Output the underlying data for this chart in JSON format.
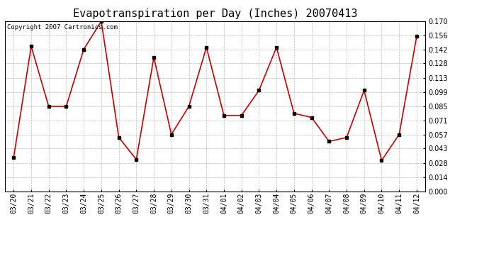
{
  "title": "Evapotranspiration per Day (Inches) 20070413",
  "copyright_text": "Copyright 2007 Cartronics.com",
  "dates": [
    "03/20",
    "03/21",
    "03/22",
    "03/23",
    "03/24",
    "03/25",
    "03/26",
    "03/27",
    "03/28",
    "03/29",
    "03/30",
    "03/31",
    "04/01",
    "04/02",
    "04/03",
    "04/04",
    "04/05",
    "04/06",
    "04/07",
    "04/08",
    "04/09",
    "04/10",
    "04/11",
    "04/12"
  ],
  "values": [
    0.034,
    0.145,
    0.085,
    0.085,
    0.142,
    0.17,
    0.054,
    0.032,
    0.134,
    0.057,
    0.085,
    0.144,
    0.076,
    0.076,
    0.101,
    0.144,
    0.078,
    0.074,
    0.05,
    0.054,
    0.101,
    0.031,
    0.057,
    0.155
  ],
  "line_color": "#cc0000",
  "marker_color": "#cc0000",
  "background_color": "#ffffff",
  "grid_color": "#bbbbbb",
  "ylim": [
    0.0,
    0.17
  ],
  "yticks": [
    0.0,
    0.014,
    0.028,
    0.043,
    0.057,
    0.071,
    0.085,
    0.099,
    0.113,
    0.128,
    0.142,
    0.156,
    0.17
  ],
  "title_fontsize": 11,
  "tick_fontsize": 7,
  "copyright_fontsize": 6.5
}
